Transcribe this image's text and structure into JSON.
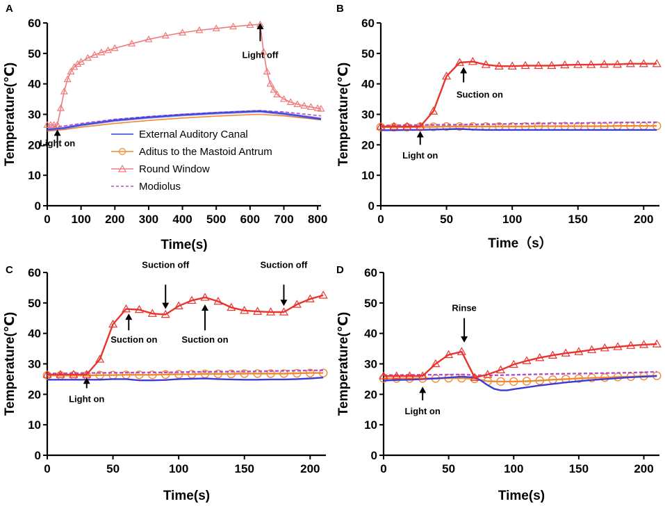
{
  "colors": {
    "eac": "#3b3bd9",
    "aditus": "#f08a30",
    "round": "#e8332f",
    "round_light": "#f07a7a",
    "modiolus": "#b24fc9",
    "axis": "#000000"
  },
  "legend": {
    "items": [
      {
        "label": "External Auditory Canal",
        "series": "eac"
      },
      {
        "label": "Aditus to the Mastoid Antrum",
        "series": "aditus"
      },
      {
        "label": "Round Window",
        "series": "round"
      },
      {
        "label": "Modiolus",
        "series": "modiolus"
      }
    ]
  },
  "chart_data": [
    {
      "type": "line",
      "panel": "A",
      "xlabel": "Time(s)",
      "ylabel": "Temperature(℃)",
      "xlim": [
        0,
        810
      ],
      "ylim": [
        0,
        60
      ],
      "xticks": [
        0,
        100,
        200,
        300,
        400,
        500,
        600,
        700,
        800
      ],
      "yticks": [
        0,
        10,
        20,
        30,
        40,
        50,
        60
      ],
      "annotations": [
        {
          "text": "Light on",
          "x": 30,
          "y": 19.5,
          "arrow_from": 19,
          "arrow_to": 25,
          "arrow_dir": "up"
        },
        {
          "text": "Light off",
          "x": 630,
          "y": 48.5,
          "arrow_from": 54,
          "arrow_to": 60,
          "arrow_dir": "up"
        }
      ],
      "series": [
        {
          "key": "eac",
          "name": "External Auditory Canal",
          "x": [
            0,
            50,
            100,
            200,
            300,
            400,
            500,
            600,
            630,
            700,
            810
          ],
          "y": [
            25,
            25.5,
            26.5,
            28,
            29,
            29.8,
            30.4,
            30.9,
            31,
            30.2,
            28.5
          ]
        },
        {
          "key": "aditus",
          "name": "Aditus to the Mastoid Antrum",
          "x": [
            0,
            50,
            100,
            200,
            300,
            400,
            500,
            600,
            630,
            700,
            810
          ],
          "y": [
            24.5,
            25,
            25.8,
            27,
            28,
            28.8,
            29.4,
            29.9,
            30,
            29.5,
            28.2
          ]
        },
        {
          "key": "round",
          "name": "Round Window",
          "x": [
            0,
            10,
            20,
            30,
            40,
            50,
            60,
            70,
            80,
            90,
            100,
            120,
            140,
            160,
            180,
            200,
            250,
            300,
            350,
            400,
            450,
            500,
            550,
            600,
            630,
            640,
            650,
            660,
            670,
            680,
            700,
            720,
            740,
            760,
            780,
            800,
            810
          ],
          "y": [
            26.5,
            26.5,
            26.5,
            26.5,
            32,
            37.5,
            41.5,
            44,
            45.5,
            46.5,
            47.2,
            48.5,
            49.5,
            50.3,
            51,
            51.7,
            53.2,
            54.6,
            55.8,
            56.8,
            57.6,
            58.2,
            58.8,
            59.3,
            59.5,
            50.5,
            44,
            40,
            38,
            36.5,
            35,
            34,
            33.3,
            32.8,
            32.4,
            32,
            31.8
          ]
        },
        {
          "key": "modiolus",
          "name": "Modiolus",
          "x": [
            0,
            50,
            100,
            200,
            300,
            400,
            500,
            600,
            630,
            700,
            810
          ],
          "y": [
            25.8,
            26.2,
            27,
            28.4,
            29.3,
            30,
            30.6,
            31.1,
            31.2,
            30.8,
            29.5
          ]
        }
      ]
    },
    {
      "type": "line",
      "panel": "B",
      "xlabel": "Time（s）",
      "ylabel": "Temperature(℃)",
      "xlim": [
        0,
        212
      ],
      "ylim": [
        0,
        60
      ],
      "xticks": [
        0,
        50,
        100,
        150,
        200
      ],
      "yticks": [
        0,
        10,
        20,
        30,
        40,
        50,
        60
      ],
      "annotations": [
        {
          "text": "Light on",
          "x": 30,
          "y": 15.5,
          "arrow_from": 20,
          "arrow_to": 24.5,
          "arrow_dir": "up"
        },
        {
          "text": "Suction on",
          "x": 70,
          "y": 35.5,
          "arrow_from": 40.5,
          "arrow_to": 45.5,
          "arrow_dir": "up",
          "arrow_x": 63
        }
      ],
      "series": [
        {
          "key": "eac",
          "name": "External Auditory Canal",
          "x": [
            0,
            10,
            20,
            30,
            40,
            50,
            60,
            70,
            80,
            90,
            100,
            110,
            120,
            130,
            140,
            150,
            160,
            170,
            180,
            190,
            200,
            210
          ],
          "y": [
            24.8,
            24.8,
            24.9,
            24.9,
            25,
            25.1,
            25.2,
            25,
            24.9,
            24.9,
            24.9,
            24.9,
            24.9,
            24.9,
            24.9,
            24.9,
            24.9,
            24.9,
            24.9,
            24.9,
            24.9,
            24.9
          ]
        },
        {
          "key": "aditus",
          "name": "Aditus to the Mastoid Antrum",
          "x": [
            0,
            10,
            20,
            30,
            40,
            50,
            60,
            70,
            80,
            90,
            100,
            110,
            120,
            130,
            140,
            150,
            160,
            170,
            180,
            190,
            200,
            210
          ],
          "y": [
            25.8,
            25.8,
            25.8,
            25.9,
            25.9,
            26,
            26,
            26,
            26,
            26,
            26,
            26,
            26.1,
            26.1,
            26.1,
            26.1,
            26.1,
            26.1,
            26.2,
            26.2,
            26.2,
            26.2
          ]
        },
        {
          "key": "round",
          "name": "Round Window",
          "x": [
            0,
            10,
            20,
            30,
            40,
            50,
            60,
            70,
            80,
            90,
            100,
            110,
            120,
            130,
            140,
            150,
            160,
            170,
            180,
            190,
            200,
            210
          ],
          "y": [
            26,
            26,
            26,
            26,
            31,
            42.5,
            47,
            47.3,
            46.3,
            45.8,
            45.8,
            46,
            46,
            46,
            46.2,
            46.3,
            46.3,
            46.4,
            46.4,
            46.6,
            46.6,
            46.6
          ]
        },
        {
          "key": "modiolus",
          "name": "Modiolus",
          "x": [
            0,
            30,
            60,
            90,
            120,
            150,
            180,
            210
          ],
          "y": [
            26.3,
            26.5,
            26.6,
            26.8,
            27,
            27.1,
            27.3,
            27.4
          ]
        }
      ]
    },
    {
      "type": "line",
      "panel": "C",
      "xlabel": "Time(s)",
      "ylabel": "Temperature(℃)",
      "xlim": [
        0,
        212
      ],
      "ylim": [
        0,
        60
      ],
      "xticks": [
        0,
        50,
        100,
        150,
        200
      ],
      "yticks": [
        0,
        10,
        20,
        30,
        40,
        50,
        60
      ],
      "annotations": [
        {
          "text": "Light on",
          "x": 30,
          "y": 17.5,
          "arrow_from": 22,
          "arrow_to": 25.5,
          "arrow_dir": "up"
        },
        {
          "text": "Suction on",
          "x": 66,
          "y": 37,
          "arrow_from": 41,
          "arrow_to": 46.5,
          "arrow_dir": "up",
          "arrow_x": 62
        },
        {
          "text": "Suction off",
          "x": 90,
          "y": 61.5,
          "arrow_from": 56,
          "arrow_to": 48,
          "arrow_dir": "down"
        },
        {
          "text": "Suction on",
          "x": 120,
          "y": 37,
          "arrow_from": 41,
          "arrow_to": 49.5,
          "arrow_dir": "up"
        },
        {
          "text": "Suction off",
          "x": 180,
          "y": 61.5,
          "arrow_from": 56,
          "arrow_to": 49,
          "arrow_dir": "down"
        }
      ],
      "series": [
        {
          "key": "eac",
          "name": "External Auditory Canal",
          "x": [
            0,
            10,
            20,
            30,
            40,
            50,
            60,
            70,
            80,
            90,
            100,
            110,
            120,
            130,
            140,
            150,
            160,
            170,
            180,
            190,
            200,
            210
          ],
          "y": [
            24.8,
            24.8,
            24.8,
            24.8,
            24.8,
            25,
            25,
            24.6,
            24.6,
            24.7,
            25,
            25.1,
            25.2,
            25,
            24.9,
            24.8,
            24.8,
            24.9,
            24.9,
            25,
            25.2,
            25.5
          ]
        },
        {
          "key": "aditus",
          "name": "Aditus to the Mastoid Antrum",
          "x": [
            0,
            10,
            20,
            30,
            40,
            50,
            60,
            70,
            80,
            90,
            100,
            110,
            120,
            130,
            140,
            150,
            160,
            170,
            180,
            190,
            200,
            210
          ],
          "y": [
            26.2,
            26.2,
            26.2,
            26.2,
            26.3,
            26.3,
            26.4,
            26.4,
            26.4,
            26.5,
            26.6,
            26.6,
            26.7,
            26.7,
            26.7,
            26.8,
            26.8,
            26.8,
            26.8,
            26.9,
            27,
            27
          ]
        },
        {
          "key": "round",
          "name": "Round Window",
          "x": [
            0,
            10,
            20,
            30,
            40,
            50,
            60,
            70,
            80,
            90,
            100,
            110,
            120,
            130,
            140,
            150,
            160,
            170,
            180,
            190,
            200,
            210
          ],
          "y": [
            26.5,
            26.5,
            26.5,
            26.5,
            31.5,
            43,
            48,
            47.8,
            46.5,
            46.2,
            49,
            50.8,
            51.8,
            50.5,
            48.5,
            47.5,
            47.2,
            47,
            47,
            49.5,
            51.3,
            52.5
          ]
        },
        {
          "key": "modiolus",
          "name": "Modiolus",
          "x": [
            0,
            30,
            60,
            90,
            120,
            150,
            180,
            210
          ],
          "y": [
            26.8,
            27,
            27.1,
            27.2,
            27.4,
            27.5,
            27.7,
            27.9
          ]
        }
      ]
    },
    {
      "type": "line",
      "panel": "D",
      "xlabel": "Time(s)",
      "ylabel": "Temperature(℃)",
      "xlim": [
        0,
        212
      ],
      "ylim": [
        0,
        60
      ],
      "xticks": [
        0,
        50,
        100,
        150,
        200
      ],
      "yticks": [
        0,
        10,
        20,
        30,
        40,
        50,
        60
      ],
      "annotations": [
        {
          "text": "Light on",
          "x": 30,
          "y": 13.5,
          "arrow_from": 18,
          "arrow_to": 22.5,
          "arrow_dir": "up"
        },
        {
          "text": "Rinse",
          "x": 62,
          "y": 47.3,
          "arrow_from": 45,
          "arrow_to": 37,
          "arrow_dir": "down"
        }
      ],
      "series": [
        {
          "key": "eac",
          "name": "External Auditory Canal",
          "x": [
            0,
            10,
            20,
            30,
            40,
            50,
            60,
            70,
            75,
            80,
            85,
            90,
            95,
            100,
            110,
            120,
            130,
            140,
            150,
            160,
            170,
            180,
            190,
            200,
            210
          ],
          "y": [
            24.5,
            24.7,
            24.8,
            25,
            25.2,
            25.5,
            25.8,
            25.5,
            24.5,
            23,
            21.8,
            21.3,
            21.3,
            21.7,
            22.3,
            22.9,
            23.4,
            23.9,
            24.3,
            24.7,
            25,
            25.3,
            25.6,
            25.8,
            26
          ]
        },
        {
          "key": "aditus",
          "name": "Aditus to the Mastoid Antrum",
          "x": [
            0,
            10,
            20,
            30,
            40,
            50,
            60,
            70,
            80,
            90,
            100,
            110,
            120,
            130,
            140,
            150,
            160,
            170,
            180,
            190,
            200,
            210
          ],
          "y": [
            25.2,
            25.2,
            25.2,
            25.2,
            25.2,
            25.3,
            25.3,
            25.1,
            24.3,
            24.2,
            24.2,
            24.3,
            24.5,
            24.8,
            25,
            25.2,
            25.4,
            25.5,
            25.7,
            25.8,
            26,
            26.1
          ]
        },
        {
          "key": "round",
          "name": "Round Window",
          "x": [
            0,
            10,
            20,
            30,
            40,
            50,
            60,
            70,
            80,
            90,
            100,
            110,
            120,
            130,
            140,
            150,
            160,
            170,
            180,
            190,
            200,
            210
          ],
          "y": [
            26,
            26,
            26,
            26,
            30,
            33,
            34,
            25.5,
            26.5,
            28,
            29.8,
            31,
            32,
            32.8,
            33.5,
            34,
            34.6,
            35.2,
            35.6,
            36,
            36.3,
            36.5
          ]
        },
        {
          "key": "modiolus",
          "name": "Modiolus",
          "x": [
            0,
            30,
            60,
            70,
            80,
            100,
            130,
            160,
            190,
            210
          ],
          "y": [
            26.3,
            26.4,
            26.5,
            26.3,
            26.2,
            26.4,
            26.7,
            26.9,
            27.1,
            27.4
          ]
        }
      ]
    }
  ]
}
